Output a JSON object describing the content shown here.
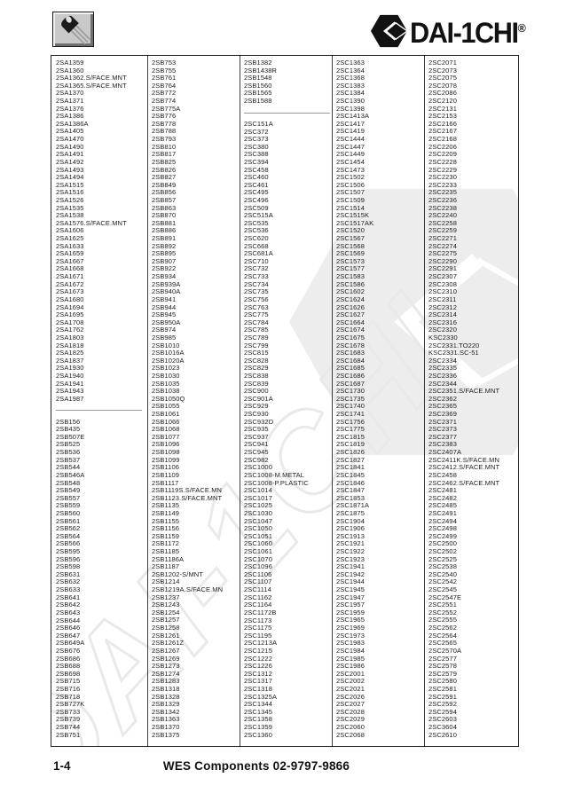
{
  "header": {
    "brand": "DAI-1CHI",
    "registered": "®",
    "icons": {
      "tool_button": "transistor-icon",
      "brand_mark": "hexagon-logo-icon"
    }
  },
  "footer": {
    "page": "1-4",
    "center": "WES Components 02-9797-9866"
  },
  "colors": {
    "text": "#1c1c1c",
    "table_border": "#242424",
    "column_divider": "#3c3c3c",
    "group_separator": "#9a9a9a",
    "watermark": "#ededed",
    "brand": "#121212"
  },
  "columns": [
    {
      "groups": [
        [
          "2SA1359",
          "2SA1360",
          "2SA1362.S/FACE.MNT",
          "2SA1365.S/FACE.MNT",
          "2SA1370",
          "2SA1371",
          "2SA1376",
          "2SA1386",
          "2SA1386A",
          "2SA1405",
          "2SA1470",
          "2SA1490",
          "2SA1491",
          "2SA1492",
          "2SA1493",
          "2SA1494",
          "2SA1515",
          "2SA1516",
          "2SA1526",
          "2SA1535",
          "2SA1538",
          "2SA1576.S/FACE.MNT",
          "2SA1606",
          "2SA1625",
          "2SA1633",
          "2SA1659",
          "2SA1667",
          "2SA1668",
          "2SA1671",
          "2SA1672",
          "2SA1673",
          "2SA1680",
          "2SA1694",
          "2SA1695",
          "2SA1708",
          "2SA1762",
          "2SA1803",
          "2SA1818",
          "2SA1825",
          "2SA1837",
          "2SA1930",
          "2SA1940",
          "2SA1941",
          "2SA1943",
          "2SA1987"
        ],
        [
          "2SB156",
          "2SB435",
          "2SB507E",
          "2SB525",
          "2SB536",
          "2SB537",
          "2SB544",
          "2SB546A",
          "2SB548",
          "2SB549",
          "2SB557",
          "2SB559",
          "2SB560",
          "2SB561",
          "2SB562",
          "2SB564",
          "2SB566",
          "2SB595",
          "2SB596",
          "2SB598",
          "2SB631",
          "2SB632",
          "2SB633",
          "2SB641",
          "2SB642",
          "2SB643",
          "2SB644",
          "2SB646",
          "2SB647",
          "2SB649A",
          "2SB676",
          "2SB686",
          "2SB688",
          "2SB698",
          "2SB715",
          "2SB716",
          "2SB718",
          "2SB727K",
          "2SB733",
          "2SB739",
          "2SB744",
          "2SB751"
        ]
      ]
    },
    {
      "groups": [
        [
          "2SB753",
          "2SB755",
          "2SB761",
          "2SB764",
          "2SB772",
          "2SB774",
          "2SB775A",
          "2SB776",
          "2SB778",
          "2SB788",
          "2SB793",
          "2SB810",
          "2SB817",
          "2SB825",
          "2SB826",
          "2SB827",
          "2SB849",
          "2SB856",
          "2SB857",
          "2SB863",
          "2SB870",
          "2SB881",
          "2SB886",
          "2SB891",
          "2SB892",
          "2SB895",
          "2SB907",
          "2SB922",
          "2SB934",
          "2SB939A",
          "2SB940A",
          "2SB941",
          "2SB944",
          "2SB945",
          "2SB950A",
          "2SB974",
          "2SB985",
          "2SB1010",
          "2SB1016A",
          "2SB1020A",
          "2SB1023",
          "2SB1030",
          "2SB1035",
          "2SB1038",
          "2SB1050Q",
          "2SB1055",
          "2SB1061",
          "2SB1066",
          "2SB1068",
          "2SB1077",
          "2SB1096",
          "2SB1098",
          "2SB1099",
          "2SB1106",
          "2SB1109",
          "2SB1117",
          "2SB1119S.S/FACE.MN",
          "2SB1123.S/FACE.MNT",
          "2SB1135",
          "2SB1149",
          "2SB1155",
          "2SB1156",
          "2SB1159",
          "2SB1172",
          "2SB1185",
          "2SB1186A",
          "2SB1187",
          "2SB1202-S/MNT",
          "2SB1214",
          "2SB1219A.S/FACE.MN",
          "2SB1237",
          "2SB1243",
          "2SB1254",
          "2SB1257",
          "2SB1258",
          "2SB1261",
          "2SB1261Z",
          "2SB1267",
          "2SB1269",
          "2SB1273",
          "2SB1274",
          "2SB1283",
          "2SB1318",
          "2SB1328",
          "2SB1329",
          "2SB1342",
          "2SB1363",
          "2SB1370",
          "2SB1375"
        ]
      ]
    },
    {
      "groups": [
        [
          "2SB1382",
          "2SB1438R",
          "2SB1548",
          "2SB1560",
          "2SB1565",
          "2SB1588"
        ],
        [
          "2SC151A",
          "2SC372",
          "2SC373",
          "2SC380",
          "2SC388",
          "2SC394",
          "2SC458",
          "2SC460",
          "2SC461",
          "2SC495",
          "2SC496",
          "2SC509",
          "2SC515A",
          "2SC535",
          "2SC536",
          "2SC620",
          "2SC668",
          "2SC681A",
          "2SC710",
          "2SC732",
          "2SC733",
          "2SC734",
          "2SC735",
          "2SC756",
          "2SC763",
          "2SC775",
          "2SC784",
          "2SC785",
          "2SC789",
          "2SC799",
          "2SC815",
          "2SC828",
          "2SC829",
          "2SC838",
          "2SC839",
          "2SC900",
          "2SC901A",
          "2SC929",
          "2SC930",
          "2SC932D",
          "2SC935",
          "2SC937",
          "2SC941",
          "2SC945",
          "2SC982",
          "2SC1000",
          "2SC1008-M.METAL",
          "2SC1008-P.PLASTIC",
          "2SC1014",
          "2SC1017",
          "2SC1025",
          "2SC1030",
          "2SC1047",
          "2SC1050",
          "2SC1051",
          "2SC1060",
          "2SC1061",
          "2SC1070",
          "2SC1096",
          "2SC1106",
          "2SC1107",
          "2SC1114",
          "2SC1162",
          "2SC1164",
          "2SC1172B",
          "2SC1173",
          "2SC1175",
          "2SC1195",
          "2SC1213A",
          "2SC1215",
          "2SC1222",
          "2SC1226",
          "2SC1312",
          "2SC1317",
          "2SC1318",
          "2SC1325A",
          "2SC1344",
          "2SC1345",
          "2SC1358",
          "2SC1359",
          "2SC1360"
        ]
      ]
    },
    {
      "groups": [
        [
          "2SC1363",
          "2SC1364",
          "2SC1368",
          "2SC1383",
          "2SC1384",
          "2SC1390",
          "2SC1398",
          "2SC1413A",
          "2SC1417",
          "2SC1419",
          "2SC1444",
          "2SC1447",
          "2SC1449",
          "2SC1454",
          "2SC1473",
          "2SC1502",
          "2SC1506",
          "2SC1507",
          "2SC1509",
          "2SC1514",
          "2SC1515K",
          "2SC1517AK",
          "2SC1520",
          "2SC1567",
          "2SC1568",
          "2SC1569",
          "2SC1573",
          "2SC1577",
          "2SC1583",
          "2SC1586",
          "2SC1602",
          "2SC1624",
          "2SC1626",
          "2SC1627",
          "2SC1664",
          "2SC1674",
          "2SC1675",
          "2SC1678",
          "2SC1683",
          "2SC1684",
          "2SC1685",
          "2SC1686",
          "2SC1687",
          "2SC1730",
          "2SC1735",
          "2SC1740",
          "2SC1741",
          "2SC1756",
          "2SC1775",
          "2SC1815",
          "2SC1819",
          "2SC1826",
          "2SC1827",
          "2SC1841",
          "2SC1845",
          "2SC1846",
          "2SC1847",
          "2SC1853",
          "2SC1871A",
          "2SC1875",
          "2SC1904",
          "2SC1906",
          "2SC1913",
          "2SC1921",
          "2SC1922",
          "2SC1923",
          "2SC1941",
          "2SC1942",
          "2SC1944",
          "2SC1945",
          "2SC1947",
          "2SC1957",
          "2SC1959",
          "2SC1965",
          "2SC1969",
          "2SC1973",
          "2SC1983",
          "2SC1984",
          "2SC1985",
          "2SC1986",
          "2SC2001",
          "2SC2002",
          "2SC2021",
          "2SC2026",
          "2SC2027",
          "2SC2028",
          "2SC2029",
          "2SC2060",
          "2SC2068"
        ]
      ]
    },
    {
      "groups": [
        [
          "2SC2071",
          "2SC2073",
          "2SC2075",
          "2SC2078",
          "2SC2086",
          "2SC2120",
          "2SC2131",
          "2SC2153",
          "2SC2166",
          "2SC2167",
          "2SC2168",
          "2SC2206",
          "2SC2209",
          "2SC2228",
          "2SC2229",
          "2SC2230",
          "2SC2233",
          "2SC2235",
          "2SC2236",
          "2SC2238",
          "2SC2240",
          "2SC2258",
          "2SC2259",
          "2SC2271",
          "2SC2274",
          "2SC2275",
          "2SC2290",
          "2SC2291",
          "2SC2307",
          "2SC2308",
          "2SC2310",
          "2SC2311",
          "2SC2312",
          "2SC2314",
          "2SC2316",
          "2SC2320",
          "KSC2330",
          "2SC2331.TO220",
          "KSC2331.SC-51",
          "2SC2334",
          "2SC2335",
          "2SC2336",
          "2SC2344",
          "2SC2351.S/FACE.MNT",
          "2SC2362",
          "2SC2365",
          "2SC2369",
          "2SC2371",
          "2SC2373",
          "2SC2377",
          "2SC2383",
          "2SC2407A",
          "2SC2411K.S/FACE.MN",
          "2SC2412.S/FACE.MNT",
          "2SC2458",
          "2SC2462.S/FACE.MNT",
          "2SC2481",
          "2SC2482",
          "2SC2485",
          "2SC2491",
          "2SC2494",
          "2SC2498",
          "2SC2499",
          "2SC2500",
          "2SC2502",
          "2SC2525",
          "2SC2538",
          "2SC2540",
          "2SC2542",
          "2SC2545",
          "2SC2547E",
          "2SC2551",
          "2SC2552",
          "2SC2555",
          "2SC2562",
          "2SC2564",
          "2SC2565",
          "2SC2570A",
          "2SC2577",
          "2SC2578",
          "2SC2579",
          "2SC2580",
          "2SC2581",
          "2SC2591",
          "2SC2592",
          "2SC2594",
          "2SC2603",
          "2SC3604",
          "2SC2610"
        ]
      ]
    }
  ]
}
